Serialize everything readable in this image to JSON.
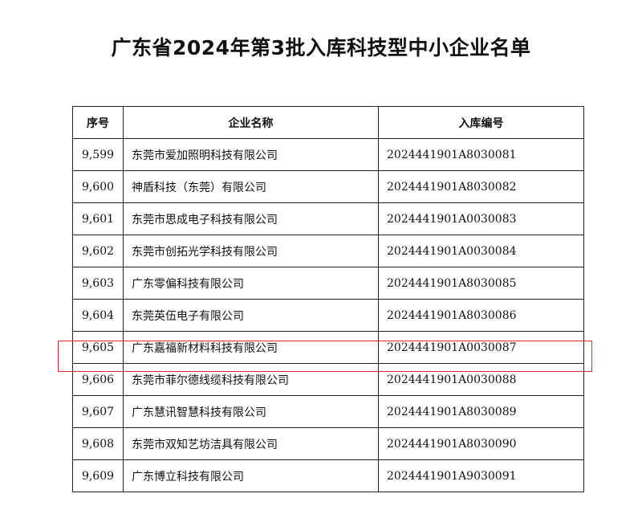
{
  "title": "广东省2024年第3批入库科技型中小企业名单",
  "table": {
    "headers": [
      "序号",
      "企业名称",
      "入库编号"
    ],
    "rows": [
      [
        "9,599",
        "东莞市爱加照明科技有限公司",
        "2024441901A8030081"
      ],
      [
        "9,600",
        "神盾科技（东莞）有限公司",
        "2024441901A8030082"
      ],
      [
        "9,601",
        "东莞市思成电子科技有限公司",
        "2024441901A0030083"
      ],
      [
        "9,602",
        "东莞市创拓光学科技有限公司",
        "2024441901A0030084"
      ],
      [
        "9,603",
        "广东零偏科技有限公司",
        "2024441901A8030085"
      ],
      [
        "9,604",
        "东莞英伍电子有限公司",
        "2024441901A8030086"
      ],
      [
        "9,605",
        "广东嘉福新材料科技有限公司",
        "2024441901A0030087"
      ],
      [
        "9,606",
        "东莞市菲尔德线缆科技有限公司",
        "2024441901A0030088"
      ],
      [
        "9,607",
        "广东慧讯智慧科技有限公司",
        "2024441901A8030089"
      ],
      [
        "9,608",
        "东莞市双知艺坊洁具有限公司",
        "2024441901A8030090"
      ],
      [
        "9,609",
        "广东博立科技有限公司",
        "2024441901A9030091"
      ]
    ],
    "highlighted_row": "9,605",
    "highlight_color": "#e52a2a"
  }
}
